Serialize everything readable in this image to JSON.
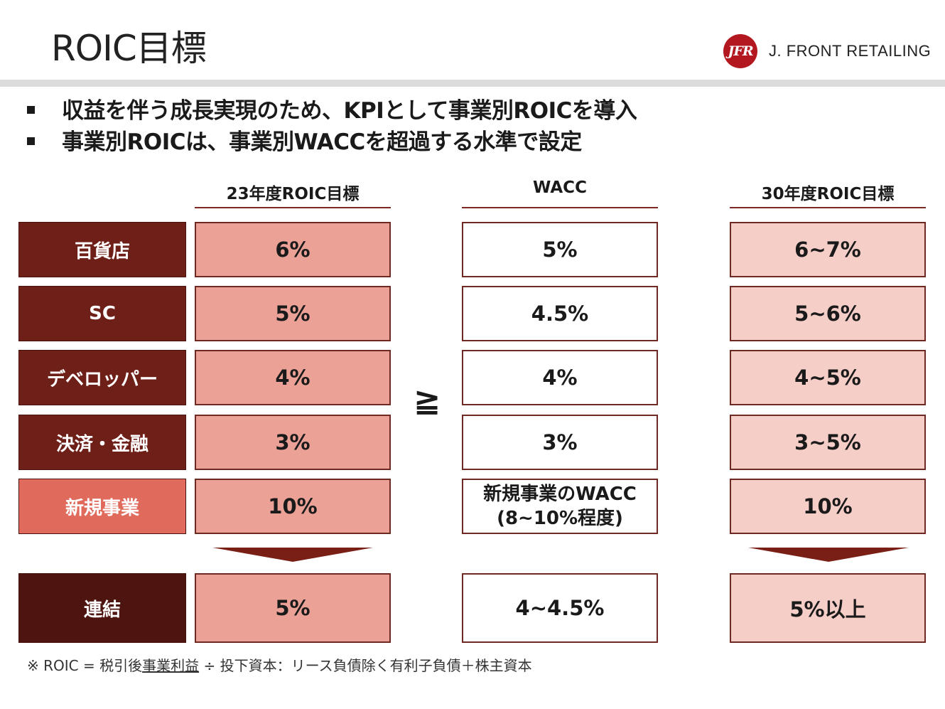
{
  "header": {
    "title": "ROIC目標",
    "logo_mark": "JFR",
    "logo_text": "J. FRONT RETAILING"
  },
  "bullets": [
    "収益を伴う成長実現のため、KPIとして事業別ROICを導入",
    "事業別ROICは、事業別WACCを超過する水準で設定"
  ],
  "columns": {
    "roic23": "23年度ROIC目標",
    "wacc": "WACC",
    "roic30": "30年度ROIC目標"
  },
  "comparison_symbol": "≧",
  "rows": [
    {
      "segment": "百貨店",
      "roic23": "6%",
      "wacc": "5%",
      "roic30": "6~7%"
    },
    {
      "segment": "SC",
      "roic23": "5%",
      "wacc": "4.5%",
      "roic30": "5~6%"
    },
    {
      "segment": "デベロッパー",
      "roic23": "4%",
      "wacc": "4%",
      "roic30": "4~5%"
    },
    {
      "segment": "決済・金融",
      "roic23": "3%",
      "wacc": "3%",
      "roic30": "3~5%"
    },
    {
      "segment": "新規事業",
      "roic23": "10%",
      "wacc_line1": "新規事業のWACC",
      "wacc_line2": "(8~10%程度)",
      "roic30": "10%"
    }
  ],
  "total": {
    "segment": "連結",
    "roic23": "5%",
    "wacc": "4~4.5%",
    "roic30": "5%以上"
  },
  "footnote": {
    "prefix": "※ ROIC = 税引後",
    "underlined": "事業利益",
    "suffix": " ÷ 投下資本：リース負債除く有利子負債＋株主資本"
  },
  "colors": {
    "segment_dark": "#6e1f18",
    "segment_new": "#e06b5c",
    "segment_total": "#4e1510",
    "roic23_fill": "#eba196",
    "roic30_fill": "#f6cec8",
    "logo_red": "#b3171f"
  }
}
